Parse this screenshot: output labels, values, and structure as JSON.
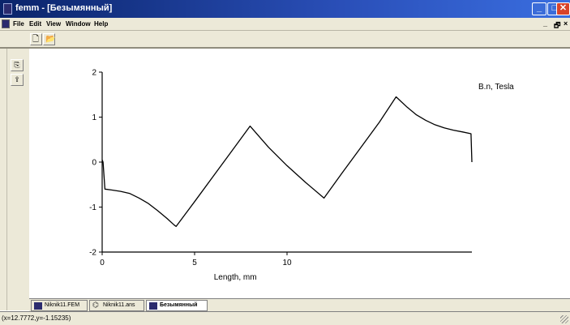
{
  "window": {
    "title": "femm - [Безымянный]"
  },
  "menu": {
    "items": [
      "File",
      "Edit",
      "View",
      "Window",
      "Help"
    ],
    "mdi_controls": [
      "_",
      "🗗",
      "×"
    ]
  },
  "tabs": [
    {
      "label": "Niknik11.FEM",
      "active": false,
      "icon": "fem-doc-icon"
    },
    {
      "label": "Niknik11.ans",
      "active": false,
      "icon": "output-doc-icon"
    },
    {
      "label": "Безымянный",
      "active": true,
      "icon": "plot-doc-icon"
    }
  ],
  "status": {
    "coords": "(x=12.7772,y=-1.15235)"
  },
  "colors": {
    "titlebar": "#0a246a",
    "chrome": "#ece9d8",
    "close_button": "#d8432a"
  },
  "chart_data": {
    "type": "line",
    "title": "",
    "legend_label": "B.n, Tesla",
    "legend_position": "top-right",
    "xlabel": "Length, mm",
    "ylabel": "",
    "xlim": [
      0,
      20
    ],
    "ylim": [
      -2,
      2
    ],
    "x_ticks": [
      0,
      5,
      10
    ],
    "y_ticks": [
      2,
      1,
      0,
      -1,
      -2
    ],
    "grid": false,
    "series": [
      {
        "x": [
          0,
          0.05,
          0.15,
          0.5,
          1.0,
          1.5,
          2.0,
          2.5,
          3.0,
          3.5,
          3.9,
          4.0,
          5.0,
          6.0,
          7.0,
          8.0,
          9.0,
          10.0,
          11.0,
          12.0,
          13.0,
          14.0,
          15.0,
          15.9,
          16.5,
          17.0,
          17.5,
          18.0,
          18.5,
          19.0,
          19.5,
          19.95,
          20.0
        ],
        "y": [
          0.05,
          0.0,
          -0.6,
          -0.62,
          -0.65,
          -0.7,
          -0.8,
          -0.92,
          -1.08,
          -1.25,
          -1.4,
          -1.43,
          -0.88,
          -0.32,
          0.24,
          0.8,
          0.33,
          -0.08,
          -0.45,
          -0.8,
          -0.23,
          0.33,
          0.89,
          1.45,
          1.22,
          1.05,
          0.93,
          0.83,
          0.76,
          0.71,
          0.67,
          0.63,
          0.0
        ]
      }
    ]
  }
}
